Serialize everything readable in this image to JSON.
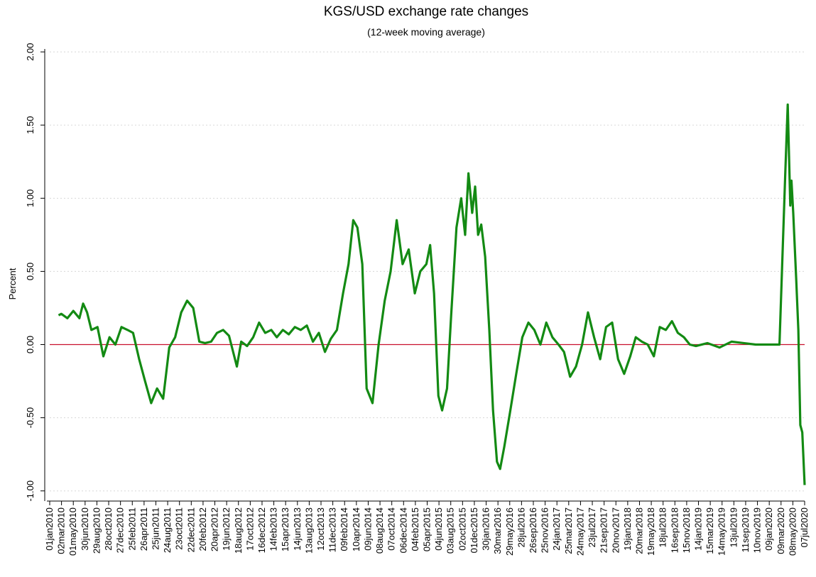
{
  "chart_data": {
    "type": "line",
    "title": "KGS/USD exchange rate changes",
    "subtitle": "(12-week moving average)",
    "ylabel": "Percent",
    "grid": true,
    "hline": {
      "value": 0,
      "color": "#c8102e"
    },
    "ylim": [
      -1.05,
      2.02
    ],
    "yticks": [
      {
        "value": -1,
        "label": "-1.00"
      },
      {
        "value": -0.5,
        "label": "-0.50"
      },
      {
        "value": 0,
        "label": "0.00"
      },
      {
        "value": 0.5,
        "label": "0.50"
      },
      {
        "value": 1,
        "label": "1.00"
      },
      {
        "value": 1.5,
        "label": "1.50"
      },
      {
        "value": 2,
        "label": "2.00"
      }
    ],
    "xlim": [
      "2010-01-01",
      "2020-07-07"
    ],
    "xticks": [
      {
        "value": "2010-01-01",
        "label": "01jan2010"
      },
      {
        "value": "2010-03-02",
        "label": "02mar2010"
      },
      {
        "value": "2010-05-01",
        "label": "01may2010"
      },
      {
        "value": "2010-06-30",
        "label": "30jun2010"
      },
      {
        "value": "2010-08-29",
        "label": "29aug2010"
      },
      {
        "value": "2010-10-28",
        "label": "28oct2010"
      },
      {
        "value": "2010-12-27",
        "label": "27dec2010"
      },
      {
        "value": "2011-02-25",
        "label": "25feb2011"
      },
      {
        "value": "2011-04-26",
        "label": "26apr2011"
      },
      {
        "value": "2011-06-25",
        "label": "25jun2011"
      },
      {
        "value": "2011-08-24",
        "label": "24aug2011"
      },
      {
        "value": "2011-10-23",
        "label": "23oct2011"
      },
      {
        "value": "2011-12-22",
        "label": "22dec2011"
      },
      {
        "value": "2012-02-20",
        "label": "20feb2012"
      },
      {
        "value": "2012-04-20",
        "label": "20apr2012"
      },
      {
        "value": "2012-06-19",
        "label": "19jun2012"
      },
      {
        "value": "2012-08-18",
        "label": "18aug2012"
      },
      {
        "value": "2012-10-17",
        "label": "17oct2012"
      },
      {
        "value": "2012-12-16",
        "label": "16dec2012"
      },
      {
        "value": "2013-02-14",
        "label": "14feb2013"
      },
      {
        "value": "2013-04-15",
        "label": "15apr2013"
      },
      {
        "value": "2013-06-14",
        "label": "14jun2013"
      },
      {
        "value": "2013-08-13",
        "label": "13aug2013"
      },
      {
        "value": "2013-10-12",
        "label": "12oct2013"
      },
      {
        "value": "2013-12-11",
        "label": "11dec2013"
      },
      {
        "value": "2014-02-09",
        "label": "09feb2014"
      },
      {
        "value": "2014-04-10",
        "label": "10apr2014"
      },
      {
        "value": "2014-06-09",
        "label": "09jun2014"
      },
      {
        "value": "2014-08-08",
        "label": "08aug2014"
      },
      {
        "value": "2014-10-07",
        "label": "07oct2014"
      },
      {
        "value": "2014-12-06",
        "label": "06dec2014"
      },
      {
        "value": "2015-02-04",
        "label": "04feb2015"
      },
      {
        "value": "2015-04-05",
        "label": "05apr2015"
      },
      {
        "value": "2015-06-04",
        "label": "04jun2015"
      },
      {
        "value": "2015-08-03",
        "label": "03aug2015"
      },
      {
        "value": "2015-10-02",
        "label": "02oct2015"
      },
      {
        "value": "2015-12-01",
        "label": "01dec2015"
      },
      {
        "value": "2016-01-30",
        "label": "30jan2016"
      },
      {
        "value": "2016-03-30",
        "label": "30mar2016"
      },
      {
        "value": "2016-05-29",
        "label": "29may2016"
      },
      {
        "value": "2016-07-28",
        "label": "28jul2016"
      },
      {
        "value": "2016-09-26",
        "label": "26sep2016"
      },
      {
        "value": "2016-11-25",
        "label": "25nov2016"
      },
      {
        "value": "2017-01-24",
        "label": "24jan2017"
      },
      {
        "value": "2017-03-25",
        "label": "25mar2017"
      },
      {
        "value": "2017-05-24",
        "label": "24may2017"
      },
      {
        "value": "2017-07-23",
        "label": "23jul2017"
      },
      {
        "value": "2017-09-21",
        "label": "21sep2017"
      },
      {
        "value": "2017-11-20",
        "label": "20nov2017"
      },
      {
        "value": "2018-01-19",
        "label": "19jan2018"
      },
      {
        "value": "2018-03-20",
        "label": "20mar2018"
      },
      {
        "value": "2018-05-19",
        "label": "19may2018"
      },
      {
        "value": "2018-07-18",
        "label": "18jul2018"
      },
      {
        "value": "2018-09-16",
        "label": "16sep2018"
      },
      {
        "value": "2018-11-15",
        "label": "15nov2018"
      },
      {
        "value": "2019-01-14",
        "label": "14jan2019"
      },
      {
        "value": "2019-03-15",
        "label": "15mar2019"
      },
      {
        "value": "2019-05-14",
        "label": "14may2019"
      },
      {
        "value": "2019-07-13",
        "label": "13jul2019"
      },
      {
        "value": "2019-09-11",
        "label": "11sep2019"
      },
      {
        "value": "2019-11-10",
        "label": "10nov2019"
      },
      {
        "value": "2020-01-09",
        "label": "09jan2020"
      },
      {
        "value": "2020-03-09",
        "label": "09mar2020"
      },
      {
        "value": "2020-05-08",
        "label": "08may2020"
      },
      {
        "value": "2020-07-07",
        "label": "07jul2020"
      }
    ],
    "x": [
      "2010-02-15",
      "2010-03-01",
      "2010-04-01",
      "2010-05-01",
      "2010-06-01",
      "2010-06-20",
      "2010-07-10",
      "2010-08-01",
      "2010-09-01",
      "2010-10-01",
      "2010-11-01",
      "2010-12-01",
      "2011-01-01",
      "2011-02-01",
      "2011-03-01",
      "2011-04-01",
      "2011-05-01",
      "2011-06-01",
      "2011-07-01",
      "2011-08-01",
      "2011-09-01",
      "2011-10-01",
      "2011-11-01",
      "2011-12-01",
      "2012-01-01",
      "2012-02-01",
      "2012-03-01",
      "2012-04-01",
      "2012-05-01",
      "2012-06-01",
      "2012-07-01",
      "2012-08-10",
      "2012-09-01",
      "2012-10-01",
      "2012-11-01",
      "2012-12-01",
      "2013-01-01",
      "2013-02-01",
      "2013-03-01",
      "2013-04-01",
      "2013-05-01",
      "2013-06-01",
      "2013-07-01",
      "2013-08-01",
      "2013-09-01",
      "2013-10-01",
      "2013-11-01",
      "2013-12-01",
      "2014-01-01",
      "2014-02-01",
      "2014-03-01",
      "2014-03-25",
      "2014-04-15",
      "2014-05-10",
      "2014-06-01",
      "2014-07-01",
      "2014-08-01",
      "2014-09-01",
      "2014-10-01",
      "2014-11-01",
      "2014-12-01",
      "2015-01-01",
      "2015-02-01",
      "2015-03-01",
      "2015-04-01",
      "2015-04-20",
      "2015-05-10",
      "2015-06-01",
      "2015-06-20",
      "2015-07-15",
      "2015-08-05",
      "2015-09-01",
      "2015-09-25",
      "2015-10-15",
      "2015-11-01",
      "2015-11-20",
      "2015-12-05",
      "2015-12-20",
      "2016-01-05",
      "2016-01-25",
      "2016-02-15",
      "2016-03-05",
      "2016-03-25",
      "2016-04-10",
      "2016-05-01",
      "2016-06-01",
      "2016-07-01",
      "2016-08-01",
      "2016-09-01",
      "2016-10-01",
      "2016-11-01",
      "2016-12-01",
      "2017-01-01",
      "2017-02-01",
      "2017-03-01",
      "2017-04-01",
      "2017-05-01",
      "2017-06-01",
      "2017-07-01",
      "2017-08-01",
      "2017-09-01",
      "2017-10-01",
      "2017-11-01",
      "2017-12-01",
      "2018-01-01",
      "2018-02-01",
      "2018-03-01",
      "2018-04-01",
      "2018-05-01",
      "2018-06-01",
      "2018-07-01",
      "2018-08-01",
      "2018-09-01",
      "2018-10-01",
      "2018-11-01",
      "2018-12-01",
      "2019-01-01",
      "2019-03-01",
      "2019-05-01",
      "2019-07-01",
      "2019-09-01",
      "2019-11-01",
      "2020-01-01",
      "2020-03-01",
      "2020-03-30",
      "2020-04-12",
      "2020-04-25",
      "2020-05-01",
      "2020-05-10",
      "2020-05-25",
      "2020-06-05",
      "2020-06-15",
      "2020-06-25",
      "2020-07-07"
    ],
    "series": [
      {
        "name": "KGS/USD",
        "color": "#138a13",
        "values": [
          0.2,
          0.21,
          0.18,
          0.23,
          0.18,
          0.28,
          0.22,
          0.1,
          0.12,
          -0.08,
          0.05,
          0.0,
          0.12,
          0.1,
          0.08,
          -0.1,
          -0.25,
          -0.4,
          -0.3,
          -0.37,
          -0.02,
          0.05,
          0.22,
          0.3,
          0.25,
          0.02,
          0.01,
          0.02,
          0.08,
          0.1,
          0.06,
          -0.15,
          0.02,
          -0.01,
          0.05,
          0.15,
          0.08,
          0.1,
          0.05,
          0.1,
          0.07,
          0.12,
          0.1,
          0.13,
          0.02,
          0.08,
          -0.05,
          0.04,
          0.1,
          0.35,
          0.55,
          0.85,
          0.8,
          0.55,
          -0.3,
          -0.4,
          0.0,
          0.3,
          0.5,
          0.85,
          0.55,
          0.65,
          0.35,
          0.5,
          0.55,
          0.68,
          0.35,
          -0.35,
          -0.45,
          -0.3,
          0.2,
          0.8,
          1.0,
          0.75,
          1.17,
          0.9,
          1.08,
          0.75,
          0.82,
          0.6,
          0.1,
          -0.45,
          -0.8,
          -0.85,
          -0.7,
          -0.45,
          -0.2,
          0.05,
          0.15,
          0.1,
          0.0,
          0.15,
          0.05,
          0.0,
          -0.05,
          -0.22,
          -0.15,
          0.0,
          0.22,
          0.05,
          -0.1,
          0.12,
          0.15,
          -0.1,
          -0.2,
          -0.08,
          0.05,
          0.02,
          0.0,
          -0.08,
          0.12,
          0.1,
          0.16,
          0.08,
          0.05,
          0.0,
          -0.01,
          0.01,
          -0.02,
          0.02,
          0.01,
          0.0,
          0.0,
          0.0,
          1.15,
          1.64,
          0.95,
          1.12,
          0.9,
          0.45,
          0.1,
          -0.55,
          -0.6,
          -0.96
        ]
      }
    ]
  }
}
